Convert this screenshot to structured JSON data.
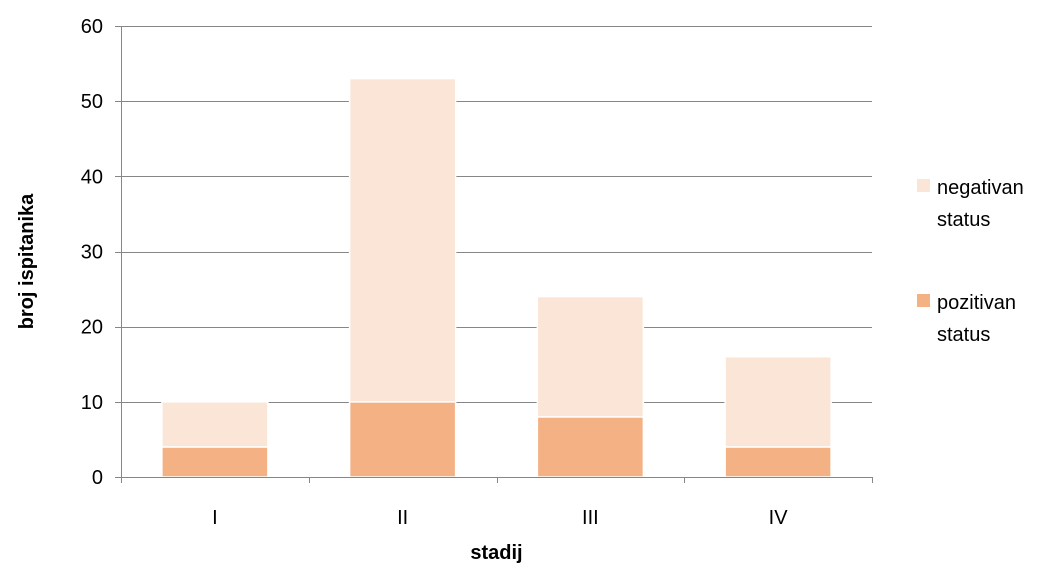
{
  "chart_data": {
    "type": "bar",
    "stacked": true,
    "categories": [
      "I",
      "II",
      "III",
      "IV"
    ],
    "series": [
      {
        "name": "pozitivan status",
        "values": [
          4,
          10,
          8,
          4
        ],
        "color": "#F4B183"
      },
      {
        "name": "negativan status",
        "values": [
          6,
          43,
          16,
          12
        ],
        "color": "#FBE5D6"
      }
    ],
    "title": "",
    "xlabel": "stadij",
    "ylabel": "broj ispitanika",
    "ylim": [
      0,
      60
    ],
    "yticks": [
      0,
      10,
      20,
      30,
      40,
      50,
      60
    ],
    "grid": true,
    "legend_position": "right",
    "legend": [
      {
        "lines": [
          "negativan",
          "status"
        ],
        "color": "#FBE5D6"
      },
      {
        "lines": [
          "pozitivan",
          "status"
        ],
        "color": "#F4B183"
      }
    ]
  }
}
